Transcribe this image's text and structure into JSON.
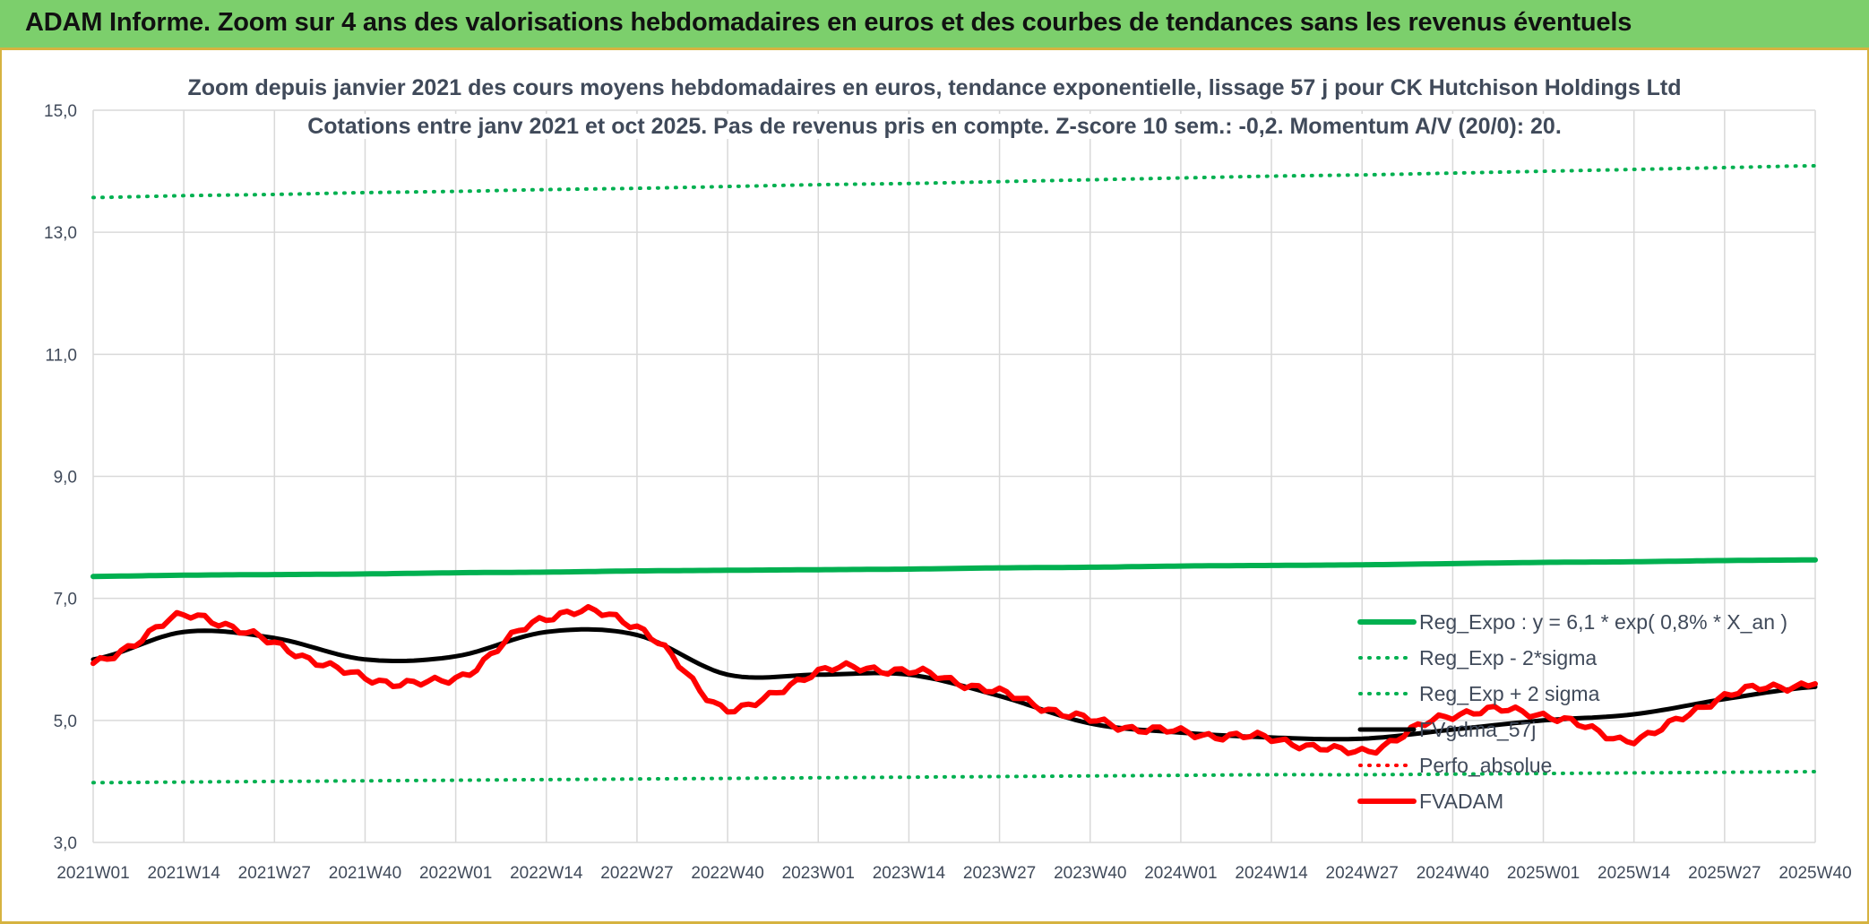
{
  "header": {
    "title": "ADAM Informe. Zoom sur 4 ans des valorisations hebdomadaires en euros et des courbes de tendances sans les revenus éventuels"
  },
  "colors": {
    "banner": "#7ccf6c",
    "reg_expo": "#00b050",
    "fvadam": "#ff0000",
    "fvgdma": "#000000",
    "perfo": "#ff0000",
    "grid": "#d9d9d9"
  },
  "chart_data": {
    "type": "line",
    "title": "Zoom depuis janvier 2021 des cours moyens hebdomadaires en euros, tendance exponentielle, lissage 57 j pour CK Hutchison Holdings Ltd",
    "subtitle": "Cotations entre janv 2021 et oct 2025. Pas de revenus pris en compte. Z-score 10 sem.: -0,2. Momentum A/V (20/0): 20.",
    "xlabel": "",
    "ylabel": "",
    "ylim": [
      3.0,
      15.0
    ],
    "yticks": [
      "3,0",
      "5,0",
      "7,0",
      "9,0",
      "11,0",
      "13,0",
      "15,0"
    ],
    "x_ticks": [
      "2021W01",
      "2021W14",
      "2021W27",
      "2021W40",
      "2022W01",
      "2022W14",
      "2022W27",
      "2022W40",
      "2023W01",
      "2023W14",
      "2023W27",
      "2023W40",
      "2024W01",
      "2024W14",
      "2024W27",
      "2024W40",
      "2025W01",
      "2025W14",
      "2025W27",
      "2025W40"
    ],
    "grid": true,
    "legend_position": "right",
    "series": [
      {
        "name": "Reg_Expo : y = 6,1 * exp( 0,8% *  X_an )",
        "style": "solid-thick",
        "color": "#00b050",
        "values_at_ticks": [
          7.36,
          7.38,
          7.39,
          7.4,
          7.42,
          7.43,
          7.45,
          7.46,
          7.47,
          7.48,
          7.5,
          7.51,
          7.53,
          7.54,
          7.55,
          7.57,
          7.59,
          7.6,
          7.62,
          7.63
        ]
      },
      {
        "name": "Reg_Exp - 2*sigma",
        "style": "dotted",
        "color": "#00b050",
        "values_at_ticks": [
          3.98,
          3.99,
          4.0,
          4.01,
          4.02,
          4.03,
          4.04,
          4.05,
          4.06,
          4.07,
          4.08,
          4.09,
          4.1,
          4.11,
          4.11,
          4.12,
          4.13,
          4.14,
          4.15,
          4.16
        ]
      },
      {
        "name": "Reg_Exp + 2 sigma",
        "style": "dotted",
        "color": "#00b050",
        "values_at_ticks": [
          13.57,
          13.6,
          13.62,
          13.65,
          13.67,
          13.7,
          13.72,
          13.75,
          13.78,
          13.8,
          13.83,
          13.86,
          13.89,
          13.92,
          13.94,
          13.97,
          14.0,
          14.03,
          14.06,
          14.09
        ]
      },
      {
        "name": "FVgdma_57j",
        "style": "solid",
        "color": "#000000",
        "values_at_ticks": [
          6.0,
          6.45,
          6.35,
          6.0,
          6.05,
          6.45,
          6.4,
          5.75,
          5.75,
          5.75,
          5.4,
          4.95,
          4.8,
          4.72,
          4.7,
          4.85,
          5.0,
          5.1,
          5.35,
          5.55
        ]
      },
      {
        "name": "Perfo_absolue",
        "style": "dotted",
        "color": "#ff0000",
        "values_at_ticks": []
      },
      {
        "name": "FVADAM",
        "style": "solid-thick",
        "color": "#ff0000",
        "values_at_ticks": [
          5.9,
          6.7,
          6.25,
          5.7,
          5.7,
          6.7,
          6.55,
          5.2,
          5.8,
          5.8,
          5.45,
          5.0,
          4.8,
          4.7,
          4.5,
          5.1,
          5.1,
          4.7,
          5.4,
          5.6
        ]
      }
    ]
  }
}
